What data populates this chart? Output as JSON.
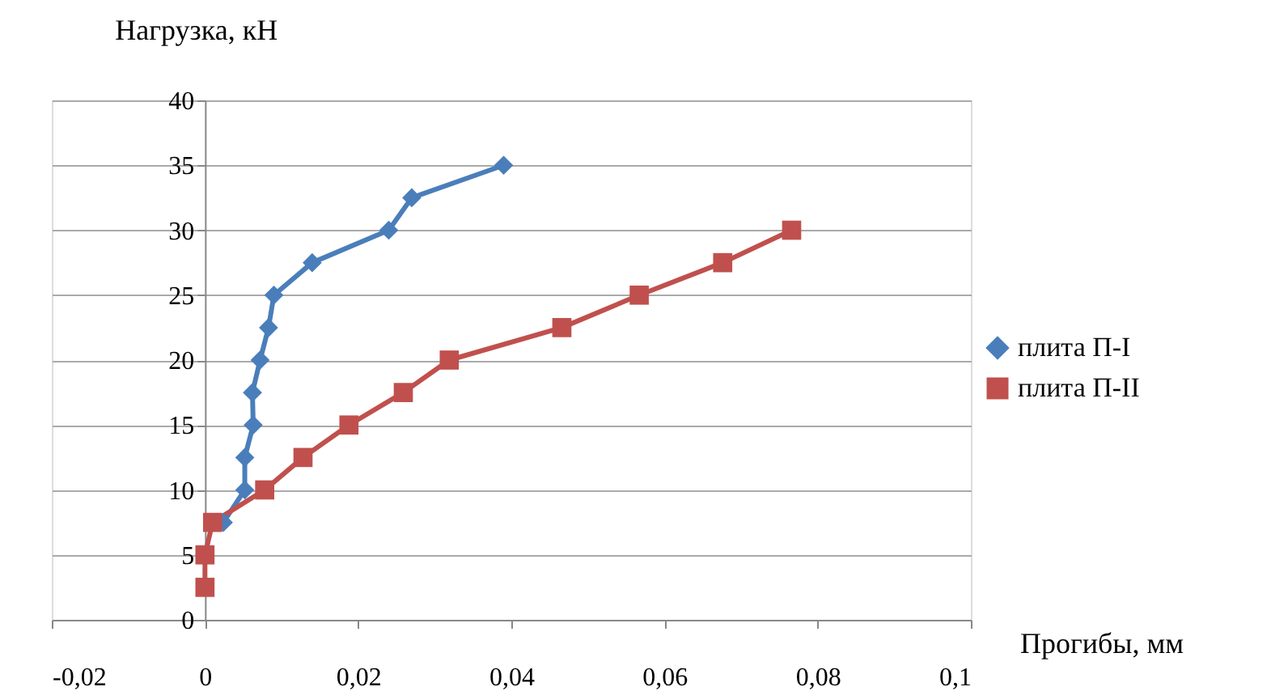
{
  "chart_data": {
    "type": "line",
    "xlabel": "Прогибы, мм",
    "ylabel": "Нагрузка, кН",
    "xlim": [
      -0.02,
      0.1
    ],
    "xticks": [
      {
        "value": -0.02,
        "label": "-0,02"
      },
      0,
      {
        "value": 0.02,
        "label": "0,02"
      },
      {
        "value": 0.04,
        "label": "0,04"
      },
      {
        "value": 0.06,
        "label": "0,06"
      },
      {
        "value": 0.08,
        "label": "0,08"
      },
      {
        "value": 0.1,
        "label": "0,1"
      }
    ],
    "ylim": [
      0,
      40
    ],
    "yticks": [
      0,
      5,
      10,
      15,
      20,
      25,
      30,
      35,
      40
    ],
    "grid": "y",
    "legend": "right",
    "line_style": "solid",
    "series": [
      {
        "name": "плита П-I",
        "color": "#4a7ebb",
        "marker": "diamond",
        "x": [
          0.0024,
          0.0052,
          0.0052,
          0.0063,
          0.0062,
          0.0072,
          0.0083,
          0.009,
          0.014,
          0.024,
          0.027,
          0.039
        ],
        "values": [
          7.5,
          10,
          12.5,
          15,
          17.5,
          20,
          22.5,
          25,
          27.5,
          30,
          32.5,
          35
        ]
      },
      {
        "name": "плита П-II",
        "color": "#c0504d",
        "marker": "square",
        "x": [
          0,
          0,
          0.001,
          0.0078,
          0.0128,
          0.0188,
          0.0259,
          0.0319,
          0.0466,
          0.0567,
          0.0676,
          0.0766
        ],
        "values": [
          2.5,
          5,
          7.5,
          10,
          12.5,
          15,
          17.5,
          20,
          22.5,
          25,
          27.5,
          30
        ]
      }
    ]
  }
}
